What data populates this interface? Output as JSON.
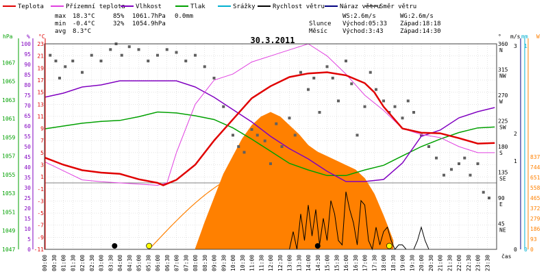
{
  "legend": [
    {
      "label": "Teplota",
      "color": "#e00000"
    },
    {
      "label": "Přízemní teplota",
      "color": "#e040e0"
    },
    {
      "label": "Vlhkost",
      "color": "#8000c0"
    },
    {
      "label": "Tlak",
      "color": "#00a000"
    },
    {
      "label": "Srážky",
      "color": "#00b0d0"
    },
    {
      "label": "Rychlost větru",
      "color": "#000000"
    },
    {
      "label": "Náraz větru",
      "color": "#000080"
    },
    {
      "label": "Směr větru",
      "color": "#606060"
    }
  ],
  "stats": {
    "max_label": "max",
    "max_temp": "18.3°C",
    "max_hum": "85%",
    "max_press": "1061.7hPa",
    "max_rain": "0.0mm",
    "min_label": "min",
    "min_temp": "-0.4°C",
    "min_hum": "32%",
    "min_press": "1054.9hPa",
    "avg_label": "avg",
    "avg_temp": "8.3°C"
  },
  "info": {
    "ws": "WS:2.6m/s",
    "wg": "WG:2.6m/s",
    "sun_label": "Slunce",
    "sun_rise": "Východ:05:33",
    "sun_set": "Západ:18:18",
    "moon_label": "Měsíc",
    "moon_rise": "Východ:3:43",
    "moon_set": "Západ:14:30"
  },
  "colors": {
    "temp": "#e00000",
    "ground": "#e040e0",
    "hum": "#8000c0",
    "press": "#00a000",
    "rain": "#00b0d0",
    "wind": "#000000",
    "gust": "#000080",
    "dir": "#606060",
    "solar": "#ff8000",
    "grid": "#c8c8c8"
  },
  "chart_data": {
    "type": "line",
    "title": "30.3.2011",
    "xlabel": "čas",
    "x_ticks": [
      "00:00",
      "00:30",
      "01:00",
      "01:30",
      "02:00",
      "02:30",
      "03:00",
      "03:30",
      "04:00",
      "04:30",
      "05:00",
      "05:30",
      "06:00",
      "06:30",
      "07:00",
      "07:30",
      "08:00",
      "08:30",
      "09:00",
      "09:30",
      "10:00",
      "10:30",
      "11:00",
      "11:30",
      "12:00",
      "12:30",
      "13:00",
      "13:30",
      "14:00",
      "14:30",
      "15:00",
      "15:30",
      "16:00",
      "16:30",
      "17:00",
      "17:30",
      "18:00",
      "18:30",
      "19:00",
      "19:30",
      "20:00",
      "20:30",
      "21:00",
      "21:30",
      "22:00",
      "22:30",
      "23:00",
      "23:30"
    ],
    "axes": {
      "hpa": {
        "label": "hPa",
        "min": 1047,
        "max": 1069,
        "ticks": [
          1047,
          1049,
          1051,
          1053,
          1055,
          1057,
          1059,
          1061,
          1063,
          1065,
          1067
        ]
      },
      "percent": {
        "label": "%",
        "min": 0,
        "max": 100,
        "ticks": [
          0,
          5,
          10,
          15,
          20,
          25,
          30,
          35,
          40,
          45,
          50,
          55,
          60,
          65,
          70,
          75,
          80,
          85,
          90,
          95,
          100
        ]
      },
      "celsius": {
        "label": "°C",
        "ticks": [
          -11,
          -9,
          -7,
          -5,
          -3,
          -1,
          1,
          3,
          5,
          7,
          9,
          11,
          13,
          15,
          17,
          19,
          21,
          23
        ],
        "upper_ticks": [
          1,
          3,
          5,
          7,
          9,
          11,
          13,
          15,
          17,
          19,
          21,
          23
        ],
        "lower_ticks": [
          -11,
          -9,
          -7,
          -5,
          -3,
          -1,
          1,
          3
        ]
      },
      "direction": {
        "label": "°",
        "ticks": [
          45,
          90,
          135,
          180,
          225,
          270,
          315,
          360
        ],
        "compass": [
          "NE",
          "E",
          "SE",
          "S",
          "SW",
          "W",
          "NW",
          "N"
        ]
      },
      "wind": {
        "label": "m/s",
        "min": 0,
        "max": 3,
        "ticks": [
          0,
          1,
          2,
          3
        ]
      },
      "rain": {
        "label": "mm",
        "min": 0,
        "max": 1,
        "ticks": [
          0,
          1
        ]
      },
      "solar": {
        "label": "W",
        "min": 0,
        "max": 930,
        "ticks": [
          0,
          93,
          186,
          279,
          372,
          465,
          558,
          651,
          744,
          837
        ]
      }
    },
    "series": [
      {
        "name": "Teplota",
        "unit": "°C",
        "color": "#e00000",
        "x": [
          0,
          1,
          2,
          3,
          4,
          5,
          6,
          6.3,
          7,
          8,
          9,
          10,
          11,
          12,
          13,
          14,
          15,
          16,
          17,
          17.5,
          18,
          19,
          20,
          21,
          22,
          23,
          23.9
        ],
        "y": [
          4.2,
          3,
          2.1,
          1.7,
          1.5,
          0.6,
          0,
          -0.4,
          0.5,
          3,
          7,
          10.5,
          14,
          16,
          17.5,
          18.1,
          18.3,
          17.8,
          16.5,
          15,
          12.6,
          9,
          8.3,
          8.2,
          7.4,
          6.5,
          6.6
        ]
      },
      {
        "name": "Přízemní teplota",
        "unit": "°C",
        "color": "#e040e0",
        "x": [
          0,
          1,
          2,
          3,
          4,
          5,
          6,
          6.5,
          7,
          8,
          9,
          10,
          11,
          12,
          13,
          14,
          15,
          16,
          17,
          18,
          19,
          20,
          21,
          22,
          23,
          23.9
        ],
        "y": [
          3.5,
          2,
          0.5,
          0.2,
          0,
          -0.2,
          -0.4,
          0,
          5,
          13,
          17,
          18,
          20,
          21,
          22,
          23,
          21,
          18,
          14.5,
          12,
          9,
          8,
          7.5,
          6,
          5,
          5
        ]
      },
      {
        "name": "Vlhkost",
        "unit": "%",
        "color": "#8000c0",
        "x": [
          0,
          1,
          2,
          3,
          4,
          5,
          6,
          7,
          8,
          9,
          10,
          11,
          12,
          13,
          14,
          15,
          16,
          17,
          18,
          19,
          20,
          21,
          22,
          23,
          23.9
        ],
        "y": [
          74,
          76,
          79,
          80,
          82,
          82,
          82,
          82,
          79,
          74,
          68,
          62,
          55,
          49,
          44,
          38,
          33,
          33,
          34,
          42,
          55,
          58,
          64,
          67,
          69
        ]
      },
      {
        "name": "Tlak",
        "unit": "hPa",
        "color": "#00a000",
        "x": [
          0,
          1,
          2,
          3,
          4,
          5,
          6,
          7,
          8,
          9,
          10,
          11,
          12,
          13,
          14,
          15,
          16,
          17,
          18,
          19,
          20,
          21,
          22,
          23,
          23.9
        ],
        "y": [
          1059.9,
          1060.2,
          1060.5,
          1060.7,
          1060.8,
          1061.2,
          1061.7,
          1061.6,
          1061.3,
          1060.9,
          1060,
          1058.8,
          1057.5,
          1056.2,
          1055.5,
          1054.9,
          1054.9,
          1055.5,
          1056,
          1057,
          1058,
          1058.8,
          1059.5,
          1060,
          1060.1
        ]
      },
      {
        "name": "Rychlost větru",
        "unit": "m/s",
        "color": "#000000",
        "x": [
          13,
          13.2,
          13.4,
          13.6,
          13.8,
          14,
          14.2,
          14.4,
          14.6,
          14.8,
          15,
          15.2,
          15.4,
          15.6,
          15.8,
          16,
          16.2,
          16.4,
          16.6,
          16.8,
          17,
          17.2,
          17.4,
          17.6,
          17.8,
          18,
          18.2,
          18.4,
          18.6,
          18.8,
          19,
          19.2,
          19.4,
          19.6,
          19.8,
          20,
          20.2,
          20.4,
          20.6,
          20.8,
          21,
          21.2,
          21.4,
          21.6,
          21.8,
          22
        ],
        "y": [
          0,
          0.8,
          0,
          1.6,
          0.4,
          2,
          0.6,
          1.8,
          0.2,
          1.4,
          0.4,
          2.2,
          1.6,
          0.4,
          0.2,
          2.6,
          1.8,
          1.2,
          0.2,
          2.2,
          2,
          0.4,
          0,
          1,
          0.2,
          0.8,
          1,
          0.4,
          0,
          0.2,
          0.2,
          0,
          0,
          0,
          0.4,
          1,
          0.4,
          0,
          0,
          0,
          0,
          0,
          0,
          0,
          0,
          0
        ]
      },
      {
        "name": "Solar",
        "unit": "W",
        "color": "#ff8000",
        "x": [
          8,
          8.5,
          9,
          9.5,
          10,
          10.5,
          11,
          11.5,
          12,
          12.5,
          13,
          13.5,
          14,
          14.5,
          15,
          15.5,
          16,
          16.5,
          17,
          17.5,
          18,
          18.5
        ],
        "y": [
          0,
          120,
          230,
          340,
          420,
          500,
          560,
          600,
          620,
          600,
          560,
          520,
          470,
          440,
          420,
          400,
          380,
          360,
          320,
          250,
          150,
          40
        ]
      }
    ],
    "sun_curve": {
      "peak_hour": 11.9,
      "rise_hour": 5.55,
      "set_hour": 18.3
    },
    "direction_points": [
      {
        "h": 0.3,
        "d": 340
      },
      {
        "h": 0.6,
        "d": 330
      },
      {
        "h": 0.8,
        "d": 300
      },
      {
        "h": 1.1,
        "d": 320
      },
      {
        "h": 1.5,
        "d": 330
      },
      {
        "h": 2,
        "d": 310
      },
      {
        "h": 2.5,
        "d": 340
      },
      {
        "h": 3,
        "d": 330
      },
      {
        "h": 3.5,
        "d": 350
      },
      {
        "h": 3.8,
        "d": 360
      },
      {
        "h": 4.1,
        "d": 340
      },
      {
        "h": 4.5,
        "d": 355
      },
      {
        "h": 5,
        "d": 350
      },
      {
        "h": 5.5,
        "d": 330
      },
      {
        "h": 6,
        "d": 340
      },
      {
        "h": 6.5,
        "d": 350
      },
      {
        "h": 7,
        "d": 345
      },
      {
        "h": 7.5,
        "d": 330
      },
      {
        "h": 8,
        "d": 340
      },
      {
        "h": 8.5,
        "d": 320
      },
      {
        "h": 9,
        "d": 300
      },
      {
        "h": 9.5,
        "d": 250
      },
      {
        "h": 10,
        "d": 200
      },
      {
        "h": 10.3,
        "d": 180
      },
      {
        "h": 10.6,
        "d": 170
      },
      {
        "h": 11,
        "d": 210
      },
      {
        "h": 11.3,
        "d": 200
      },
      {
        "h": 11.7,
        "d": 190
      },
      {
        "h": 12,
        "d": 150
      },
      {
        "h": 12.3,
        "d": 220
      },
      {
        "h": 12.6,
        "d": 180
      },
      {
        "h": 13,
        "d": 230
      },
      {
        "h": 13.3,
        "d": 200
      },
      {
        "h": 13.6,
        "d": 310
      },
      {
        "h": 14,
        "d": 280
      },
      {
        "h": 14.3,
        "d": 300
      },
      {
        "h": 14.6,
        "d": 240
      },
      {
        "h": 15,
        "d": 320
      },
      {
        "h": 15.3,
        "d": 300
      },
      {
        "h": 15.6,
        "d": 260
      },
      {
        "h": 16,
        "d": 330
      },
      {
        "h": 16.3,
        "d": 290
      },
      {
        "h": 16.6,
        "d": 200
      },
      {
        "h": 17,
        "d": 250
      },
      {
        "h": 17.3,
        "d": 310
      },
      {
        "h": 17.6,
        "d": 280
      },
      {
        "h": 18,
        "d": 260
      },
      {
        "h": 18.3,
        "d": 240
      },
      {
        "h": 18.6,
        "d": 250
      },
      {
        "h": 19,
        "d": 230
      },
      {
        "h": 19.3,
        "d": 260
      },
      {
        "h": 19.6,
        "d": 240
      },
      {
        "h": 20,
        "d": 200
      },
      {
        "h": 20.4,
        "d": 180
      },
      {
        "h": 20.8,
        "d": 160
      },
      {
        "h": 21.2,
        "d": 130
      },
      {
        "h": 21.6,
        "d": 140
      },
      {
        "h": 22,
        "d": 150
      },
      {
        "h": 22.3,
        "d": 160
      },
      {
        "h": 22.6,
        "d": 130
      },
      {
        "h": 23,
        "d": 150
      },
      {
        "h": 23.3,
        "d": 100
      },
      {
        "h": 23.6,
        "d": 90
      }
    ],
    "markers": [
      {
        "type": "moonrise",
        "hour": 3.72
      },
      {
        "type": "moonset",
        "hour": 14.5
      },
      {
        "type": "sunrise",
        "hour": 5.55
      },
      {
        "type": "sunset",
        "hour": 18.3
      }
    ]
  }
}
